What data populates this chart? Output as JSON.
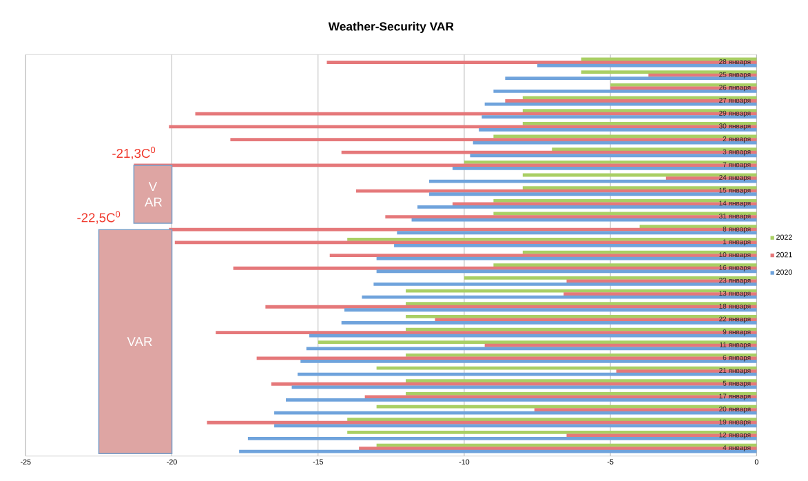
{
  "chart_data": {
    "type": "bar",
    "orientation": "horizontal",
    "title": "Weather-Security VAR",
    "categories": [
      "28 января",
      "25 января",
      "26 января",
      "27 января",
      "29 января",
      "30 января",
      "2 января",
      "3 января",
      "7 января",
      "24 января",
      "15 января",
      "14 января",
      "31 января",
      "8 января",
      "1 января",
      "10 января",
      "16 января",
      "23 января",
      "13 января",
      "18 января",
      "22 января",
      "9 января",
      "11 января",
      "6 января",
      "21 января",
      "5 января",
      "17 января",
      "20 января",
      "19 января",
      "12 января",
      "4 января"
    ],
    "series": [
      {
        "name": "2022",
        "color": "#a9cf64",
        "values": [
          -6,
          -6,
          -5,
          -8,
          -8,
          -8,
          -9,
          -7,
          -10,
          -8,
          -8,
          -9,
          -9,
          -4,
          -14,
          -8,
          -9,
          -10,
          -12,
          -12,
          -12,
          -12,
          -15,
          -12,
          -13,
          -12,
          -12,
          -13,
          -14,
          -14,
          -13
        ]
      },
      {
        "name": "2021",
        "color": "#e5787a",
        "values": [
          -14.7,
          -3.7,
          -5,
          -8.6,
          -19.2,
          -20.1,
          -18,
          -14.2,
          -21.3,
          -3.1,
          -13.7,
          -10.4,
          -12.7,
          -20.1,
          -19.9,
          -14.6,
          -17.9,
          -6.5,
          -6.6,
          -16.8,
          -11,
          -18.5,
          -9.3,
          -17.1,
          -4.8,
          -16.6,
          -13.4,
          -7.6,
          -18.8,
          -6.5,
          -13.6
        ]
      },
      {
        "name": "2020",
        "color": "#6fa3dc",
        "values": [
          -7.5,
          -8.6,
          -9,
          -9.3,
          -9.4,
          -9.5,
          -9.7,
          -9.8,
          -10.4,
          -11.2,
          -11.2,
          -11.6,
          -11.8,
          -12.3,
          -12.4,
          -13,
          -13,
          -13.1,
          -13.5,
          -14.1,
          -14.2,
          -15.3,
          -15.4,
          -15.6,
          -15.7,
          -15.9,
          -16.1,
          -16.5,
          -16.5,
          -17.4,
          -17.7
        ]
      }
    ],
    "xlim": [
      -25,
      0
    ],
    "xticks": [
      -25,
      -20,
      -15,
      -10,
      -5,
      0
    ],
    "grid": "x",
    "legend": "right",
    "bands": [
      {
        "axis": "x",
        "from": -21.3,
        "to": -20,
        "label": "V AR",
        "color": "#dea5a3"
      },
      {
        "axis": "x",
        "from": -22.5,
        "to": -20,
        "label": "VAR",
        "color": "#dea5a3"
      }
    ],
    "annotations": [
      "-21,3C$^{0}$",
      "-22,5C$^{0}$"
    ]
  }
}
